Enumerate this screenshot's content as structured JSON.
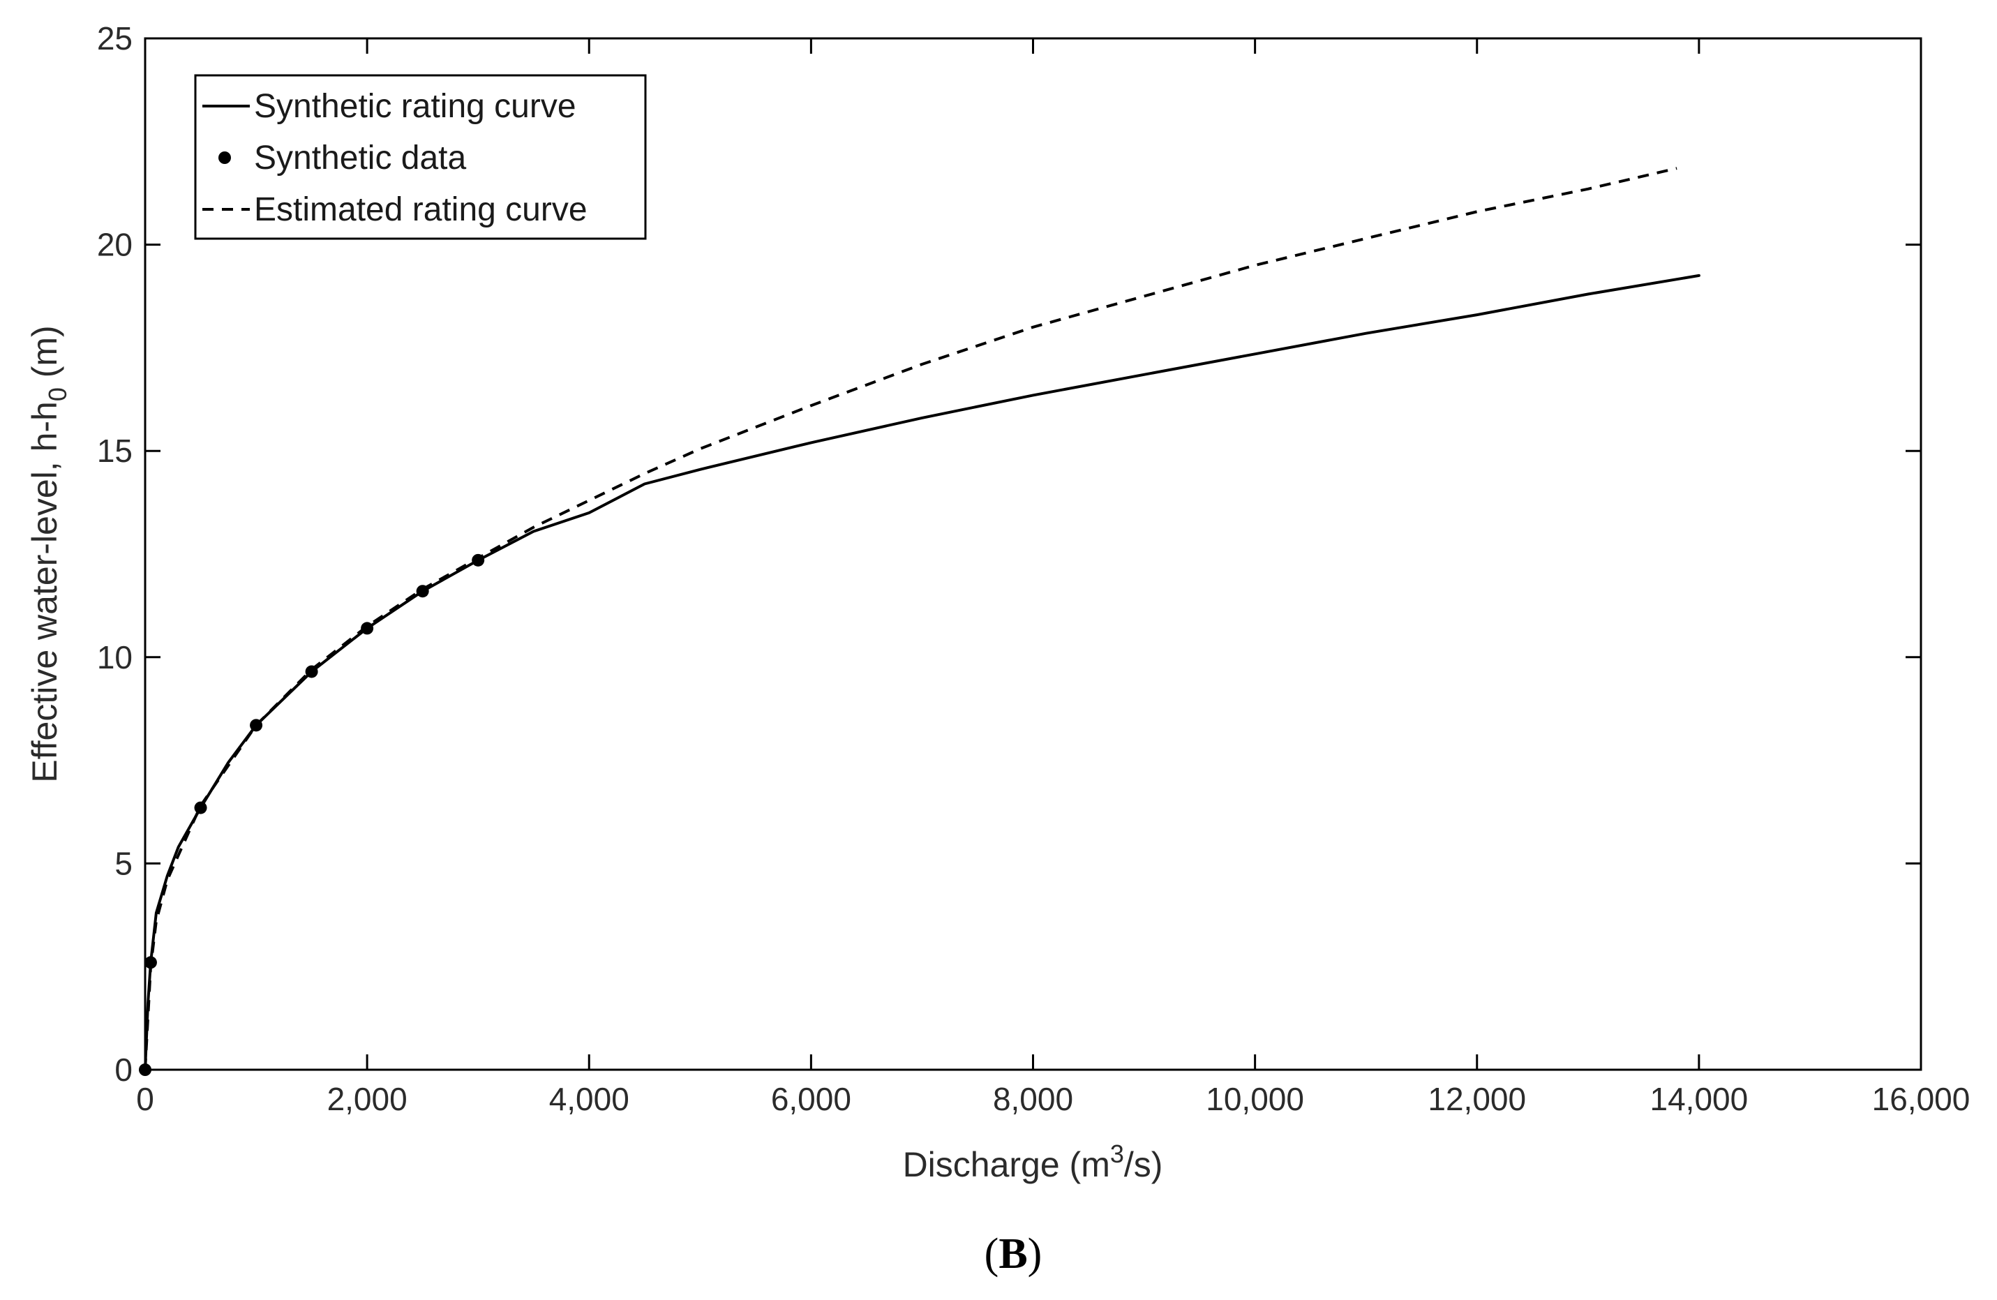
{
  "chart_data": {
    "type": "line",
    "title": "",
    "panel_label_open": "(",
    "panel_label_letter": "B",
    "panel_label_close": ")",
    "xlabel": {
      "prefix": "Discharge (m",
      "superscript": "3",
      "suffix": "/s)"
    },
    "ylabel": {
      "prefix": "Effective water-level, h-h",
      "subscript": "0",
      "suffix": " (m)"
    },
    "xlim": [
      0,
      16000
    ],
    "ylim": [
      0,
      25
    ],
    "xticks": [
      0,
      2000,
      4000,
      6000,
      8000,
      10000,
      12000,
      14000,
      16000
    ],
    "xtick_labels": [
      "0",
      "2,000",
      "4,000",
      "6,000",
      "8,000",
      "10,000",
      "12,000",
      "14,000",
      "16,000"
    ],
    "yticks": [
      0,
      5,
      10,
      15,
      20,
      25
    ],
    "ytick_labels": [
      "0",
      "5",
      "10",
      "15",
      "20",
      "25"
    ],
    "grid": false,
    "legend_position": "top-left",
    "series": [
      {
        "name": "Synthetic rating curve",
        "style": "solid",
        "color": "#000000",
        "x": [
          0,
          25,
          50,
          100,
          200,
          300,
          500,
          750,
          1000,
          1500,
          2000,
          2500,
          3000,
          3500,
          4000,
          4500,
          5000,
          6000,
          7000,
          8000,
          9000,
          10000,
          11000,
          12000,
          13000,
          14000
        ],
        "y": [
          0,
          1.6,
          2.6,
          3.8,
          4.7,
          5.4,
          6.35,
          7.45,
          8.35,
          9.65,
          10.7,
          11.6,
          12.35,
          13.05,
          13.5,
          14.2,
          14.55,
          15.2,
          15.8,
          16.35,
          16.85,
          17.35,
          17.85,
          18.3,
          18.8,
          19.25
        ]
      },
      {
        "name": "Synthetic data",
        "style": "markers",
        "color": "#000000",
        "x": [
          0,
          50,
          500,
          1000,
          1500,
          2000,
          2500,
          3000
        ],
        "y": [
          0,
          2.6,
          6.35,
          8.35,
          9.65,
          10.7,
          11.6,
          12.35
        ]
      },
      {
        "name": "Estimated rating curve",
        "style": "dashed",
        "color": "#000000",
        "x": [
          0,
          50,
          100,
          200,
          500,
          1000,
          1500,
          2000,
          2500,
          3000,
          3500,
          4000,
          4500,
          5000,
          6000,
          7000,
          8000,
          9000,
          10000,
          11000,
          12000,
          13000,
          13800
        ],
        "y": [
          0,
          2.5,
          3.6,
          4.6,
          6.4,
          8.35,
          9.7,
          10.75,
          11.65,
          12.4,
          13.15,
          13.8,
          14.45,
          15.05,
          16.1,
          17.1,
          18.0,
          18.75,
          19.5,
          20.15,
          20.8,
          21.35,
          21.85
        ]
      }
    ]
  }
}
